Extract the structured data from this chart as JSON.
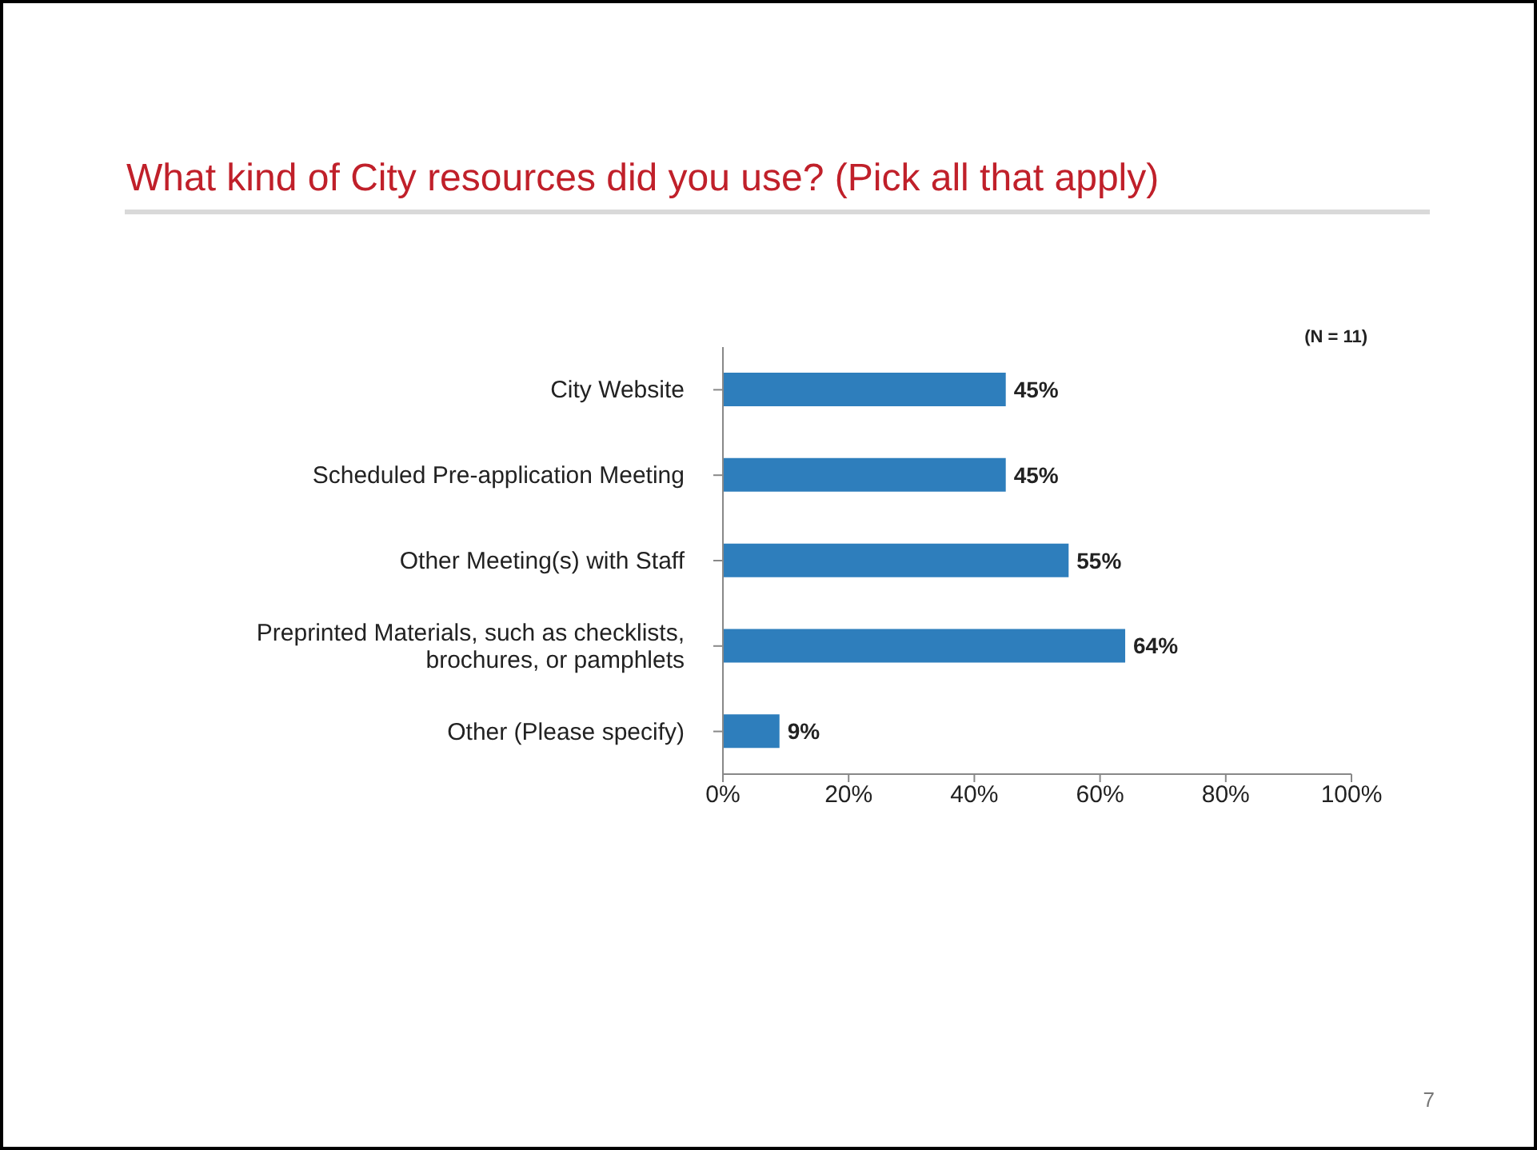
{
  "chart_data": {
    "type": "bar",
    "orientation": "horizontal",
    "title": "What kind of City resources did you use? (Pick all that apply)",
    "categories": [
      "City Website",
      "Scheduled Pre-application Meeting",
      "Other Meeting(s) with Staff",
      "Preprinted Materials, such as checklists, brochures, or pamphlets",
      "Other (Please specify)"
    ],
    "values": [
      45,
      45,
      55,
      64,
      9
    ],
    "value_labels": [
      "45%",
      "45%",
      "55%",
      "64%",
      "9%"
    ],
    "color": "#2e7ebc",
    "xlim": [
      0,
      100
    ],
    "xticks": [
      {
        "value": 0,
        "label": "0%"
      },
      {
        "value": 20,
        "label": "20%"
      },
      {
        "value": 40,
        "label": "40%"
      },
      {
        "value": 60,
        "label": "60%"
      },
      {
        "value": 80,
        "label": "80%"
      },
      {
        "value": 100,
        "label": "100%"
      }
    ],
    "grid": false,
    "legend": false,
    "annotations": [
      "(N = 11)",
      "7"
    ]
  }
}
